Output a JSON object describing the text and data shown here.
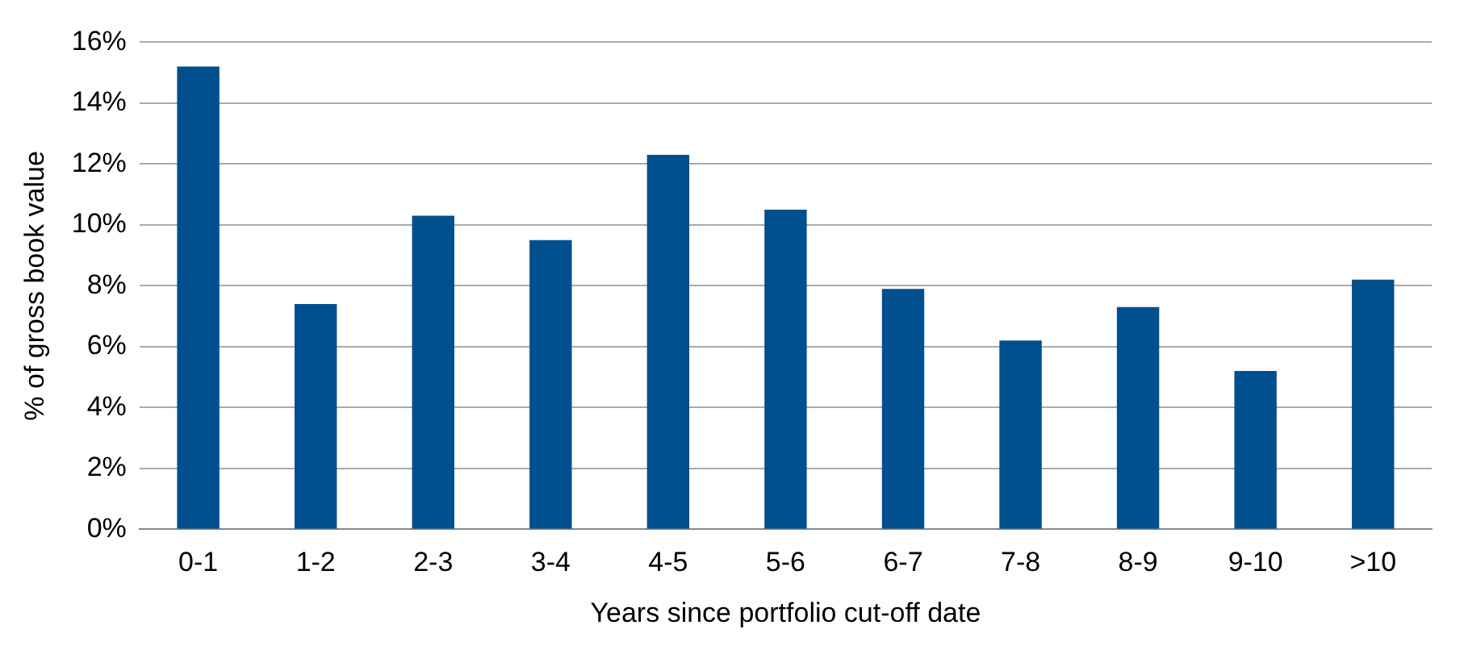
{
  "chart_data": {
    "type": "bar",
    "xlabel": "Years since portfolio cut-off date",
    "ylabel": "% of gross book value",
    "categories": [
      "0-1",
      "1-2",
      "2-3",
      "3-4",
      "4-5",
      "5-6",
      "6-7",
      "7-8",
      "8-9",
      "9-10",
      ">10"
    ],
    "values": [
      15.2,
      7.4,
      10.3,
      9.5,
      12.3,
      10.5,
      7.9,
      6.2,
      7.3,
      5.2,
      8.2
    ],
    "color": "#004f8f",
    "ylim": [
      0,
      16
    ],
    "yticks": [
      {
        "value": 0,
        "label": "0%"
      },
      {
        "value": 2,
        "label": "2%"
      },
      {
        "value": 4,
        "label": "4%"
      },
      {
        "value": 6,
        "label": "6%"
      },
      {
        "value": 8,
        "label": "8%"
      },
      {
        "value": 10,
        "label": "10%"
      },
      {
        "value": 12,
        "label": "12%"
      },
      {
        "value": 14,
        "label": "14%"
      },
      {
        "value": 16,
        "label": "16%"
      }
    ],
    "grid": "y",
    "legend": false
  }
}
